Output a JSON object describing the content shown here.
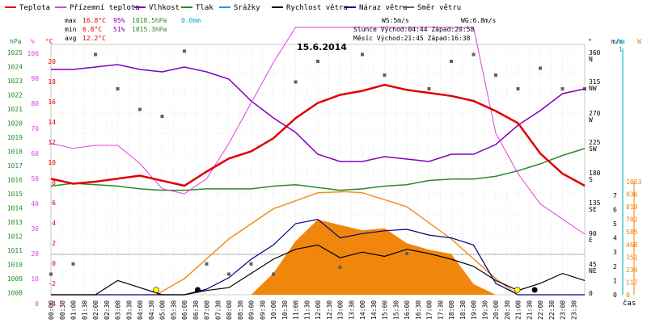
{
  "legend": [
    {
      "label": "Teplota",
      "color": "#e00000"
    },
    {
      "label": "Přízemní teplota",
      "color": "#e040e0"
    },
    {
      "label": "Vlhkost",
      "color": "#8000c0"
    },
    {
      "label": "Tlak",
      "color": "#2a8a2a"
    },
    {
      "label": "Srážky",
      "color": "#00a8d0"
    },
    {
      "label": "Rychlost větru",
      "color": "#000000"
    },
    {
      "label": "Náraz větru",
      "color": "#000080"
    },
    {
      "label": "Směr větru",
      "color": "#606060"
    }
  ],
  "stats": {
    "max_label": "max",
    "max_temp": "16.8°C",
    "max_hum": "95%",
    "max_press": "1018.5hPa",
    "rain": "0.0mm",
    "min_label": "min",
    "min_temp": "6.8°C",
    "min_hum": "51%",
    "min_press": "1015.3hPa",
    "avg_label": "avg",
    "avg_temp": "12.2°C"
  },
  "info": {
    "ws": "WS:5m/s",
    "wg": "WG:6.8m/s",
    "sun": "Slunce Východ:04:44  Západ:20:58",
    "moon": "Měsíc  Východ:21:45  Západ:16:38"
  },
  "chart_data": {
    "type": "line",
    "title": "15.6.2014",
    "xlabel": "čas",
    "x_ticks": [
      "00:00",
      "00:30",
      "01:00",
      "01:30",
      "02:00",
      "02:30",
      "03:00",
      "03:30",
      "04:00",
      "04:30",
      "05:00",
      "05:30",
      "06:00",
      "06:30",
      "07:00",
      "07:30",
      "08:00",
      "08:30",
      "09:00",
      "09:30",
      "10:00",
      "10:30",
      "11:00",
      "11:30",
      "12:00",
      "12:30",
      "13:00",
      "13:30",
      "14:00",
      "14:30",
      "15:00",
      "15:30",
      "16:00",
      "16:30",
      "17:00",
      "17:30",
      "18:00",
      "18:30",
      "19:00",
      "19:30",
      "20:00",
      "20:30",
      "21:00",
      "21:30",
      "22:00",
      "22:30",
      "23:00",
      "23:30"
    ],
    "axes": {
      "press_unit": "hPa",
      "press_ticks": [
        "1025",
        "1024",
        "1023",
        "1022",
        "1021",
        "1020",
        "1019",
        "1018",
        "1017",
        "1016",
        "1015",
        "1014",
        "1013",
        "1012",
        "1011",
        "1010",
        "1009",
        "1008"
      ],
      "hum_unit": "%",
      "hum_ticks": [
        "100",
        "90",
        "80",
        "70",
        "60",
        "50",
        "40",
        "30",
        "20",
        "10",
        "0"
      ],
      "temp_unit": "°C",
      "temp_ticks": [
        "20",
        "18",
        "16",
        "14",
        "12",
        "10",
        "8",
        "6",
        "4",
        "2",
        "0",
        "-2",
        "-4"
      ],
      "dir_unit": "°",
      "dir_ticks": [
        "360",
        "N",
        "315",
        "NW",
        "270",
        "W",
        "225",
        "SW",
        "180",
        "S",
        "135",
        "SE",
        "90",
        "E",
        "45",
        "NE",
        "0"
      ],
      "wind_unit": "m/s",
      "wind_ticks": [
        "7",
        "6",
        "5",
        "4",
        "3",
        "2",
        "1",
        "0"
      ],
      "rain_unit": "mm",
      "rain_top": "1",
      "solar_unit": "W",
      "solar_ticks": [
        "1053",
        "936",
        "819",
        "702",
        "585",
        "468",
        "351",
        "234",
        "117",
        "0"
      ]
    },
    "series": [
      {
        "name": "Teplota",
        "unit": "°C",
        "x": [
          0,
          1,
          2,
          3,
          4,
          5,
          6,
          7,
          8,
          9,
          10,
          11,
          12,
          13,
          14,
          15,
          16,
          17,
          18,
          19,
          20,
          21,
          22,
          23,
          24
        ],
        "values": [
          7.5,
          7.0,
          7.2,
          7.5,
          7.8,
          7.3,
          6.8,
          8.2,
          9.5,
          10.2,
          11.5,
          13.5,
          15.0,
          15.8,
          16.2,
          16.8,
          16.3,
          16.0,
          15.7,
          15.2,
          14.2,
          13.0,
          10.0,
          8.0,
          6.8
        ]
      },
      {
        "name": "Přízemní teplota",
        "unit": "°C",
        "x": [
          0,
          1,
          2,
          3,
          4,
          5,
          6,
          7,
          8,
          9,
          10,
          11,
          12,
          13,
          14,
          15,
          16,
          17,
          18,
          19,
          20,
          21,
          22,
          23,
          24
        ],
        "values": [
          11.0,
          10.5,
          10.8,
          10.8,
          9.0,
          6.5,
          6.0,
          7.5,
          11.0,
          15.0,
          19.0,
          22.5,
          22.5,
          22.5,
          22.5,
          22.5,
          22.5,
          22.5,
          22.5,
          22.5,
          12.0,
          8.0,
          5.0,
          3.5,
          2.0
        ]
      },
      {
        "name": "Vlhkost",
        "unit": "%",
        "x": [
          0,
          1,
          2,
          3,
          4,
          5,
          6,
          7,
          8,
          9,
          10,
          11,
          12,
          13,
          14,
          15,
          16,
          17,
          18,
          19,
          20,
          21,
          22,
          23,
          24
        ],
        "values": [
          93,
          93,
          94,
          95,
          93,
          92,
          94,
          92,
          89,
          80,
          73,
          67,
          58,
          55,
          55,
          57,
          56,
          55,
          58,
          58,
          62,
          70,
          76,
          83,
          85
        ]
      },
      {
        "name": "Tlak",
        "unit": "hPa",
        "x": [
          0,
          1,
          2,
          3,
          4,
          5,
          6,
          7,
          8,
          9,
          10,
          11,
          12,
          13,
          14,
          15,
          16,
          17,
          18,
          19,
          20,
          21,
          22,
          23,
          24
        ],
        "values": [
          1015.8,
          1016.0,
          1015.9,
          1015.8,
          1015.6,
          1015.5,
          1015.5,
          1015.6,
          1015.6,
          1015.6,
          1015.8,
          1015.9,
          1015.7,
          1015.5,
          1015.6,
          1015.8,
          1015.9,
          1016.2,
          1016.3,
          1016.3,
          1016.5,
          1016.9,
          1017.4,
          1018.0,
          1018.5
        ]
      },
      {
        "name": "Rychlost větru",
        "unit": "m/s",
        "x": [
          0,
          1,
          2,
          3,
          4,
          5,
          6,
          7,
          8,
          9,
          10,
          11,
          12,
          13,
          14,
          15,
          16,
          17,
          18,
          19,
          20,
          21,
          22,
          23,
          24
        ],
        "values": [
          0,
          0,
          0,
          1.0,
          0.5,
          0,
          0,
          0.3,
          0.5,
          1.5,
          2.5,
          3.2,
          3.5,
          2.6,
          3.0,
          2.7,
          3.2,
          2.9,
          2.5,
          2.0,
          1.0,
          0.3,
          0.8,
          1.5,
          1.0
        ]
      },
      {
        "name": "Náraz větru",
        "unit": "m/s",
        "x": [
          0,
          1,
          2,
          3,
          4,
          5,
          6,
          7,
          8,
          9,
          10,
          11,
          12,
          13,
          14,
          15,
          16,
          17,
          18,
          19,
          20,
          21,
          22,
          23,
          24
        ],
        "values": [
          0,
          0,
          0,
          0,
          0,
          0,
          0,
          0.4,
          1.2,
          2.5,
          3.5,
          5.0,
          5.3,
          4.0,
          4.3,
          4.5,
          4.6,
          4.2,
          4.0,
          3.5,
          0.8,
          0,
          0,
          0,
          0
        ]
      },
      {
        "name": "Směr větru",
        "unit": "°",
        "x": [
          0,
          1,
          2,
          3,
          4,
          5,
          6,
          7,
          8,
          9,
          10,
          11,
          12,
          13,
          14,
          15,
          16,
          17,
          18,
          19,
          20,
          21,
          22,
          23,
          24
        ],
        "values": [
          30,
          45,
          350,
          300,
          270,
          260,
          355,
          45,
          30,
          45,
          30,
          310,
          340,
          40,
          350,
          320,
          60,
          300,
          340,
          350,
          320,
          300,
          330,
          300,
          300
        ]
      },
      {
        "name": "Sluneční záření",
        "unit": "W/m²",
        "x": [
          0,
          1,
          2,
          3,
          4,
          5,
          6,
          7,
          8,
          9,
          10,
          11,
          12,
          13,
          14,
          15,
          16,
          17,
          18,
          19,
          20,
          21,
          22,
          23,
          24
        ],
        "values": [
          0,
          0,
          0,
          0,
          0,
          0,
          0,
          0,
          0,
          0,
          200,
          500,
          700,
          650,
          600,
          620,
          480,
          420,
          380,
          100,
          0,
          0,
          0,
          0,
          0
        ]
      },
      {
        "name": "Teoretické záření",
        "unit": "W/m²",
        "x": [
          4.73,
          6,
          8,
          10,
          12,
          13.2,
          14,
          16,
          18,
          20,
          20.97
        ],
        "values": [
          0,
          150,
          520,
          800,
          950,
          960,
          950,
          820,
          520,
          150,
          0
        ]
      }
    ]
  }
}
